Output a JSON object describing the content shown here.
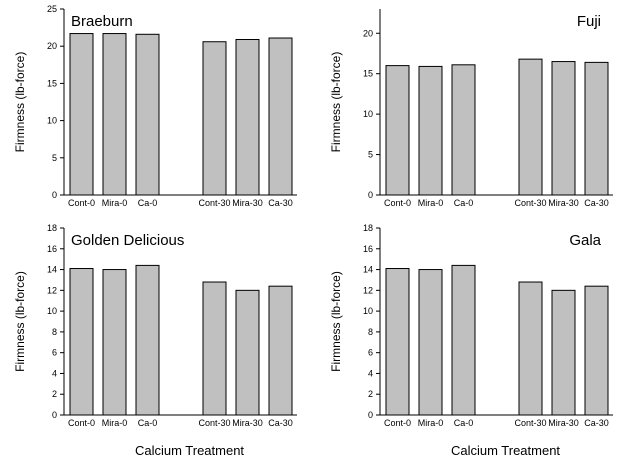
{
  "colors": {
    "bar_fill": "#c0c0c0",
    "bar_stroke": "#000000",
    "axis": "#000000",
    "background": "#ffffff"
  },
  "chart_data": [
    {
      "type": "bar",
      "title": "Braeburn",
      "title_align": "left",
      "ylabel": "Firmness (lb-force)",
      "xlabel": "",
      "categories": [
        "Cont-0",
        "Mira-0",
        "Ca-0",
        "Cont-30",
        "Mira-30",
        "Ca-30"
      ],
      "values": [
        21.7,
        21.7,
        21.6,
        20.6,
        20.9,
        21.1
      ],
      "ylim": [
        0,
        25
      ],
      "yticks": [
        0,
        5,
        10,
        15,
        20,
        25
      ],
      "grid": false
    },
    {
      "type": "bar",
      "title": "Fuji",
      "title_align": "right",
      "ylabel": "Firmness (lb-force)",
      "xlabel": "",
      "categories": [
        "Cont-0",
        "Mira-0",
        "Ca-0",
        "Cont-30",
        "Mira-30",
        "Ca-30"
      ],
      "values": [
        16.0,
        15.9,
        16.1,
        16.8,
        16.5,
        16.4
      ],
      "ylim": [
        0,
        23
      ],
      "yticks": [
        0,
        5,
        10,
        15,
        20
      ],
      "grid": false
    },
    {
      "type": "bar",
      "title": "Golden Delicious",
      "title_align": "left",
      "ylabel": "Firmness (lb-force)",
      "xlabel": "Calcium Treatment",
      "categories": [
        "Cont-0",
        "Mira-0",
        "Ca-0",
        "Cont-30",
        "Mira-30",
        "Ca-30"
      ],
      "values": [
        14.1,
        14.0,
        14.4,
        12.8,
        12.0,
        12.4
      ],
      "ylim": [
        0,
        18
      ],
      "yticks": [
        0,
        2,
        4,
        6,
        8,
        10,
        12,
        14,
        16,
        18
      ],
      "grid": false
    },
    {
      "type": "bar",
      "title": "Gala",
      "title_align": "right",
      "ylabel": "Firmness (lb-force)",
      "xlabel": "Calcium Treatment",
      "categories": [
        "Cont-0",
        "Mira-0",
        "Ca-0",
        "Cont-30",
        "Mira-30",
        "Ca-30"
      ],
      "values": [
        14.1,
        14.0,
        14.4,
        12.8,
        12.0,
        12.4
      ],
      "ylim": [
        0,
        18
      ],
      "yticks": [
        0,
        2,
        4,
        6,
        8,
        10,
        12,
        14,
        16,
        18
      ],
      "grid": false
    }
  ]
}
